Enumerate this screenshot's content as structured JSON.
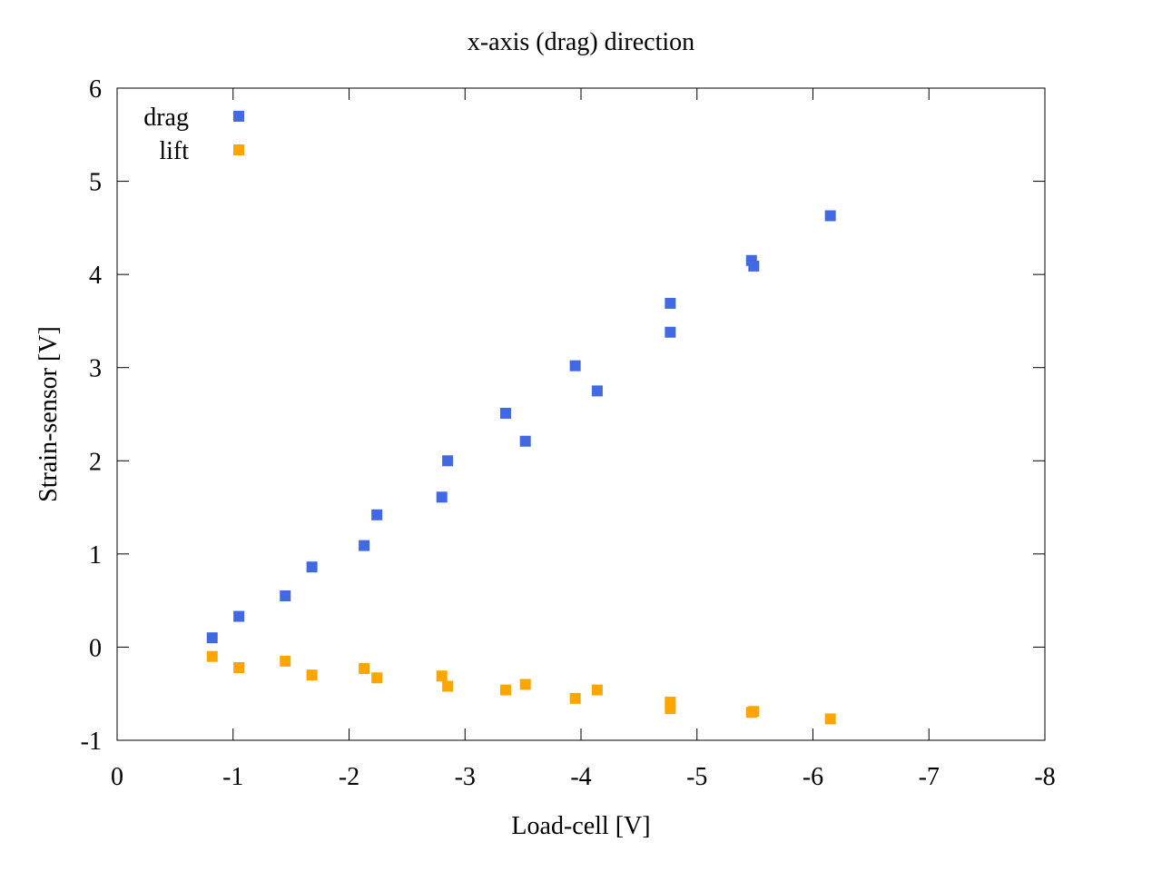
{
  "chart_data": {
    "type": "scatter",
    "title": "x-axis (drag) direction",
    "xlabel": "Load-cell [V]",
    "ylabel": "Strain-sensor [V]",
    "xlim": [
      0,
      -8
    ],
    "ylim": [
      -1,
      6
    ],
    "x_ticks": [
      "0",
      "-1",
      "-2",
      "-3",
      "-4",
      "-5",
      "-6",
      "-7",
      "-8"
    ],
    "y_ticks": [
      "-1",
      "0",
      "1",
      "2",
      "3",
      "4",
      "5",
      "6"
    ],
    "grid": false,
    "legend_position": "top-left",
    "series": [
      {
        "name": "drag",
        "color": "#4169e1",
        "marker": "square",
        "points": [
          [
            -0.82,
            0.1
          ],
          [
            -1.05,
            0.33
          ],
          [
            -1.45,
            0.55
          ],
          [
            -1.68,
            0.86
          ],
          [
            -2.13,
            1.09
          ],
          [
            -2.24,
            1.42
          ],
          [
            -2.8,
            1.61
          ],
          [
            -2.85,
            2.0
          ],
          [
            -3.35,
            2.51
          ],
          [
            -3.52,
            2.21
          ],
          [
            -3.95,
            3.02
          ],
          [
            -4.14,
            2.75
          ],
          [
            -4.77,
            3.69
          ],
          [
            -4.77,
            3.38
          ],
          [
            -5.47,
            4.15
          ],
          [
            -5.49,
            4.09
          ],
          [
            -6.15,
            4.63
          ]
        ]
      },
      {
        "name": "lift",
        "color": "#ffa500",
        "marker": "square",
        "points": [
          [
            -0.82,
            -0.1
          ],
          [
            -1.05,
            -0.22
          ],
          [
            -1.45,
            -0.15
          ],
          [
            -1.68,
            -0.3
          ],
          [
            -2.13,
            -0.23
          ],
          [
            -2.24,
            -0.33
          ],
          [
            -2.8,
            -0.31
          ],
          [
            -2.85,
            -0.42
          ],
          [
            -3.35,
            -0.46
          ],
          [
            -3.52,
            -0.4
          ],
          [
            -3.95,
            -0.55
          ],
          [
            -4.14,
            -0.46
          ],
          [
            -4.77,
            -0.59
          ],
          [
            -4.77,
            -0.66
          ],
          [
            -5.47,
            -0.7
          ],
          [
            -5.49,
            -0.69
          ],
          [
            -6.15,
            -0.77
          ]
        ]
      }
    ]
  }
}
